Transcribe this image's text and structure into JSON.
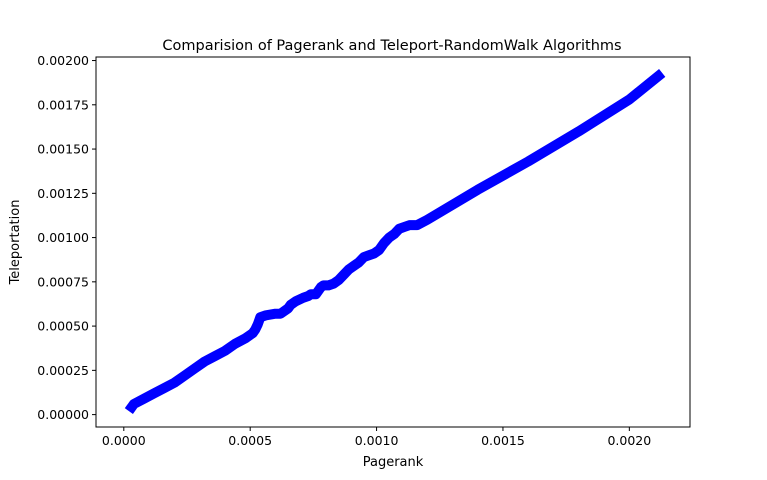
{
  "chart_data": {
    "type": "line",
    "title": "Comparision of Pagerank and Teleport-RandomWalk Algorithms",
    "xlabel": "Pagerank",
    "ylabel": "Teleportation",
    "xlim": [
      -0.00011,
      0.00224
    ],
    "ylim": [
      -7e-05,
      0.00202
    ],
    "xticks": [
      0.0,
      0.0005,
      0.001,
      0.0015,
      0.002
    ],
    "xtick_labels": [
      "0.0000",
      "0.0005",
      "0.0010",
      "0.0015",
      "0.0020"
    ],
    "yticks": [
      0.0,
      0.00025,
      0.0005,
      0.00075,
      0.001,
      0.00125,
      0.0015,
      0.00175,
      0.002
    ],
    "ytick_labels": [
      "0.00000",
      "0.00025",
      "0.00050",
      "0.00075",
      "0.00100",
      "0.00125",
      "0.00150",
      "0.00175",
      "0.00200"
    ],
    "grid": false,
    "series": [
      {
        "color": "#0000ff",
        "x": [
          2e-05,
          4e-05,
          8e-05,
          0.00012,
          0.00016,
          0.0002,
          0.00024,
          0.00028,
          0.00032,
          0.00036,
          0.0004,
          0.00044,
          0.00048,
          0.0005,
          0.00051,
          0.00052,
          0.00053,
          0.00054,
          0.00056,
          0.0006,
          0.00062,
          0.00063,
          0.00065,
          0.00066,
          0.00068,
          0.00071,
          0.00073,
          0.00074,
          0.00076,
          0.00078,
          0.00079,
          0.00081,
          0.00083,
          0.00085,
          0.00087,
          0.00089,
          0.00091,
          0.00093,
          0.00095,
          0.00097,
          0.00099,
          0.00101,
          0.00103,
          0.00105,
          0.00107,
          0.00109,
          0.00111,
          0.00113,
          0.00116,
          0.0012,
          0.0014,
          0.0016,
          0.0018,
          0.002,
          0.00213
        ],
        "y": [
          2e-05,
          6e-05,
          9e-05,
          0.00012,
          0.00015,
          0.00018,
          0.00022,
          0.00026,
          0.0003,
          0.00033,
          0.00036,
          0.0004,
          0.00043,
          0.00045,
          0.00046,
          0.00048,
          0.00051,
          0.00055,
          0.00056,
          0.00057,
          0.00057,
          0.00058,
          0.0006,
          0.00062,
          0.00064,
          0.00066,
          0.00067,
          0.00068,
          0.00068,
          0.00072,
          0.00073,
          0.00073,
          0.00074,
          0.00076,
          0.00079,
          0.00082,
          0.00084,
          0.00086,
          0.00089,
          0.0009,
          0.00091,
          0.00093,
          0.00097,
          0.001,
          0.00102,
          0.00105,
          0.00106,
          0.00107,
          0.00107,
          0.0011,
          0.00127,
          0.00143,
          0.0016,
          0.00178,
          0.00193
        ]
      }
    ]
  }
}
